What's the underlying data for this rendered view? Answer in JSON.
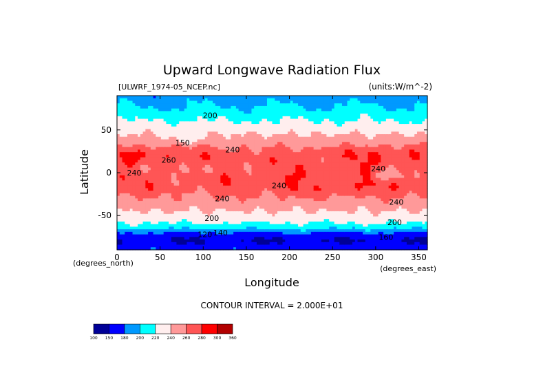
{
  "chart_data": {
    "type": "heatmap",
    "title": "Upward Longwave Radiation Flux",
    "source_label": "[ULWRF_1974-05_NCEP.nc]",
    "units_label": "(units:W/m^-2)",
    "xlabel": "Longitude",
    "ylabel": "Latitude",
    "x_units_label": "(degrees_east)",
    "y_units_label": "(degrees_north)",
    "xlim": [
      0,
      360
    ],
    "ylim": [
      -90,
      90
    ],
    "x_ticks": [
      0,
      50,
      100,
      150,
      200,
      250,
      300,
      350
    ],
    "y_ticks": [
      -50,
      0,
      50
    ],
    "contour_interval_text": "CONTOUR INTERVAL = 2.000E+01",
    "colorbar": {
      "levels": [
        "100",
        "150",
        "180",
        "200",
        "220",
        "240",
        "260",
        "280",
        "300",
        "360"
      ],
      "colors": [
        "#000097",
        "#0000ff",
        "#0099ff",
        "#00ffff",
        "#ffeeee",
        "#ff9999",
        "#ff5555",
        "#ff0000",
        "#b20000"
      ]
    },
    "contour_labels": [
      {
        "text": "200",
        "lon": 108,
        "lat": 67
      },
      {
        "text": "240",
        "lon": 134,
        "lat": 27
      },
      {
        "text": "150",
        "lon": 76,
        "lat": 35
      },
      {
        "text": "260",
        "lon": 60,
        "lat": 15
      },
      {
        "text": "240",
        "lon": 20,
        "lat": 0
      },
      {
        "text": "240",
        "lon": 188,
        "lat": -15
      },
      {
        "text": "240",
        "lon": 122,
        "lat": -30
      },
      {
        "text": "200",
        "lon": 110,
        "lat": -53
      },
      {
        "text": "120",
        "lon": 102,
        "lat": -72
      },
      {
        "text": "140",
        "lon": 120,
        "lat": -70
      },
      {
        "text": "240",
        "lon": 303,
        "lat": 5
      },
      {
        "text": "240",
        "lon": 324,
        "lat": -34
      },
      {
        "text": "200",
        "lon": 322,
        "lat": -58
      },
      {
        "text": "160",
        "lon": 312,
        "lat": -75
      }
    ]
  }
}
